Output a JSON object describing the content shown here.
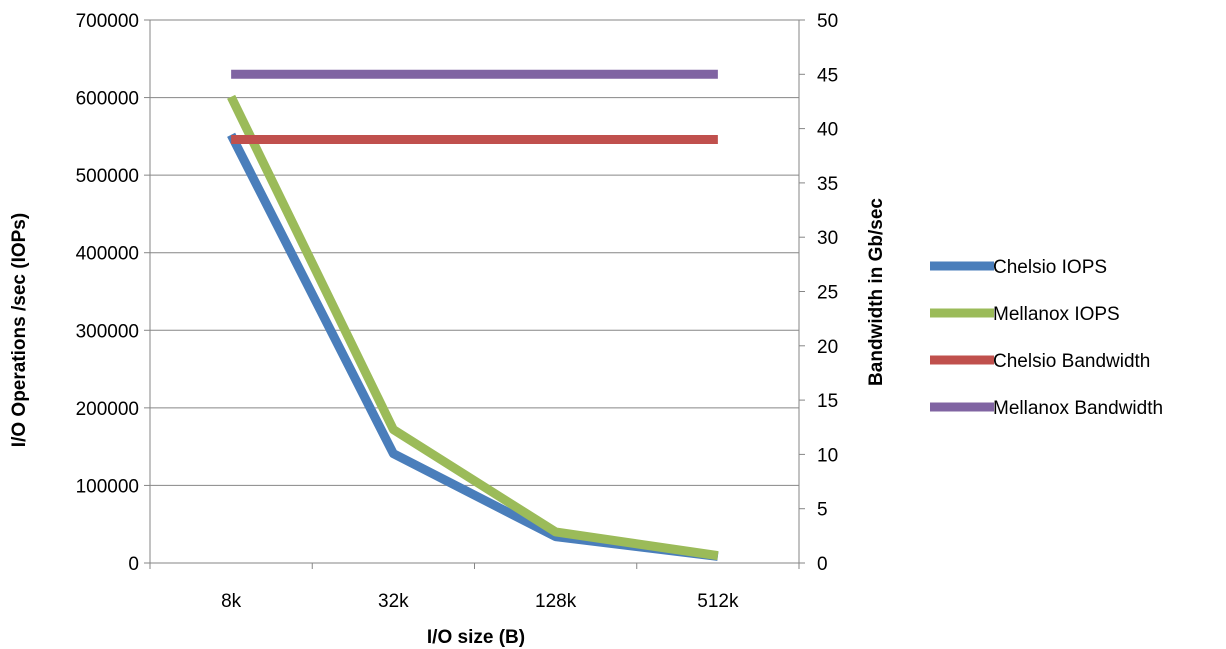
{
  "chart_data": {
    "type": "line",
    "categories": [
      "8k",
      "32k",
      "128k",
      "512k"
    ],
    "xlabel": "I/O size (B)",
    "ylabel_left": "I/O Operations /sec (IOPs)",
    "ylabel_right": "Bandwidth in Gb/sec",
    "ylim_left": [
      0,
      700000
    ],
    "ylim_right": [
      0,
      50
    ],
    "yticks_left": [
      "0",
      "100000",
      "200000",
      "300000",
      "400000",
      "500000",
      "600000",
      "700000"
    ],
    "yticks_right": [
      "0",
      "5",
      "10",
      "15",
      "20",
      "25",
      "30",
      "35",
      "40",
      "45",
      "50"
    ],
    "grid": "horizontal",
    "legend_position": "right",
    "series": [
      {
        "name": "Chelsio IOPS",
        "axis": "left",
        "color": "#4a7ebb",
        "values": [
          552000,
          141000,
          34000,
          8500
        ]
      },
      {
        "name": "Mellanox IOPS",
        "axis": "left",
        "color": "#9bbb59",
        "values": [
          601000,
          172000,
          40000,
          9500
        ]
      },
      {
        "name": "Chelsio Bandwidth",
        "axis": "right",
        "color": "#c0504d",
        "values": [
          39,
          39,
          39,
          39
        ]
      },
      {
        "name": "Mellanox Bandwidth",
        "axis": "right",
        "color": "#8064a2",
        "values": [
          45,
          45,
          45,
          45
        ]
      }
    ]
  }
}
